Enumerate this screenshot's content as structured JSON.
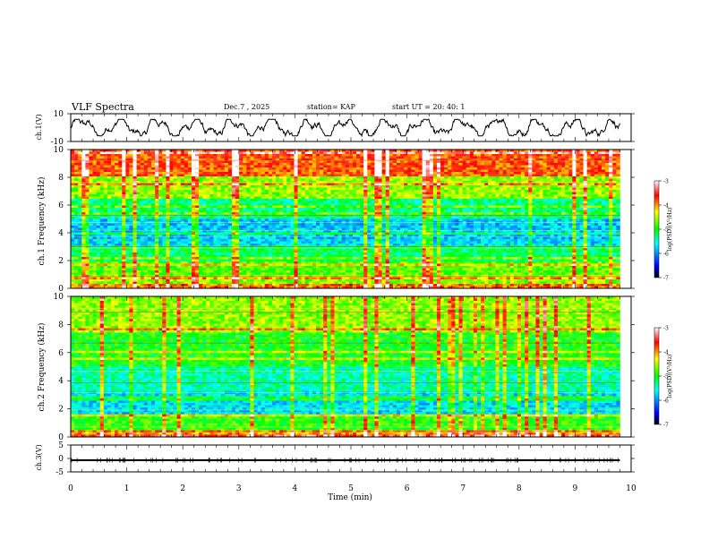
{
  "header": {
    "title": "VLF Spectra",
    "date": "Dec.7 , 2025",
    "station": "station= KAP",
    "start": "start UT =  20: 40: 1"
  },
  "colors": {
    "ramp": [
      "#000000",
      "#0000ff",
      "#00ffff",
      "#00ff00",
      "#ffff00",
      "#ff0000",
      "#ffffff"
    ],
    "trace": "#000000",
    "axes": "#000000"
  },
  "chart_data": [
    {
      "type": "line",
      "name": "ch1-waveform",
      "ylabel": "ch.1(V)",
      "ylim": [
        -10,
        10
      ],
      "yticks": [
        "10",
        "-10"
      ],
      "xlim": [
        0,
        10
      ],
      "description_series": "noisy voltage trace oscillating roughly between -4 V and +4 V"
    },
    {
      "type": "heatmap",
      "name": "ch1-spectrogram",
      "ylabel": "ch.1 Frequency (kHz)",
      "ylim": [
        0,
        10
      ],
      "yticks": [
        "0",
        "2",
        "4",
        "6",
        "8",
        "10"
      ],
      "xlim": [
        0,
        9.8
      ],
      "colorbar": {
        "label": "log(PSD)(V²/Hz)",
        "range": [
          -7,
          -3
        ],
        "ticks": [
          "-3",
          "-4",
          "-5",
          "-6",
          "-7"
        ]
      },
      "bands": [
        {
          "from": 0.0,
          "to": 0.4,
          "level": -3.9
        },
        {
          "from": 0.4,
          "to": 1.0,
          "level": -4.6
        },
        {
          "from": 1.0,
          "to": 2.0,
          "level": -4.8
        },
        {
          "from": 2.0,
          "to": 3.0,
          "level": -5.2
        },
        {
          "from": 3.0,
          "to": 3.6,
          "level": -5.7
        },
        {
          "from": 3.6,
          "to": 5.0,
          "level": -5.8
        },
        {
          "from": 5.0,
          "to": 6.4,
          "level": -5.3
        },
        {
          "from": 6.4,
          "to": 8.0,
          "level": -4.6
        },
        {
          "from": 8.0,
          "to": 10.0,
          "level": -3.8
        }
      ]
    },
    {
      "type": "heatmap",
      "name": "ch2-spectrogram",
      "ylabel": "ch.2 Frequency (kHz)",
      "ylim": [
        0,
        10
      ],
      "yticks": [
        "0",
        "2",
        "4",
        "6",
        "8",
        "10"
      ],
      "xlim": [
        0,
        9.8
      ],
      "colorbar": {
        "label": "log(PSD)(V²/Hz)",
        "range": [
          -7,
          -3
        ],
        "ticks": [
          "-3",
          "-4",
          "-5",
          "-6",
          "-7"
        ]
      },
      "bands": [
        {
          "from": 0.0,
          "to": 0.5,
          "level": -4.0
        },
        {
          "from": 0.5,
          "to": 1.6,
          "level": -4.9
        },
        {
          "from": 1.6,
          "to": 3.2,
          "level": -5.7
        },
        {
          "from": 3.2,
          "to": 5.0,
          "level": -5.4
        },
        {
          "from": 5.0,
          "to": 7.4,
          "level": -5.0
        },
        {
          "from": 7.4,
          "to": 10.0,
          "level": -4.6
        }
      ]
    },
    {
      "type": "line",
      "name": "ch3-waveform",
      "ylabel": "ch.3(V)",
      "ylim": [
        -5,
        5
      ],
      "yticks": [
        "5",
        "0",
        "-5"
      ],
      "xlim": [
        0,
        10
      ],
      "value_band": [
        -1.0,
        -0.3
      ],
      "xlabel": "Time (min)",
      "xticks": [
        "0",
        "1",
        "2",
        "3",
        "4",
        "5",
        "6",
        "7",
        "8",
        "9",
        "10"
      ]
    }
  ]
}
